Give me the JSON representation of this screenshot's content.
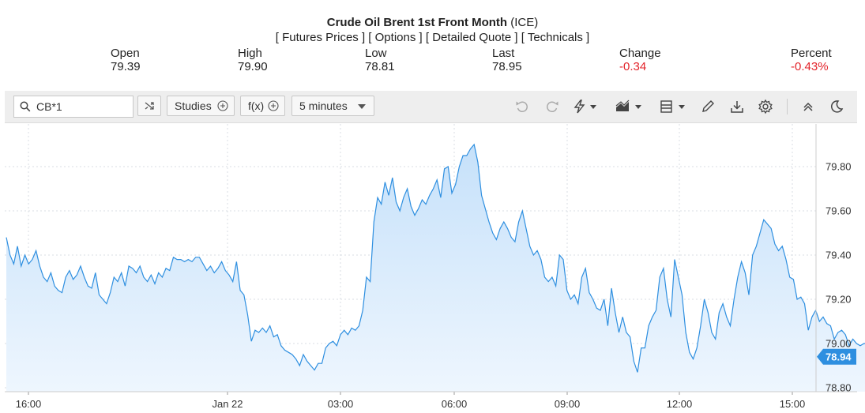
{
  "header": {
    "title_bold": "Crude Oil Brent 1st Front Month",
    "title_suffix": " (ICE)",
    "links": [
      "Futures Prices",
      "Options",
      "Detailed Quote",
      "Technicals"
    ]
  },
  "stats": {
    "open_label": "Open",
    "open_value": "79.39",
    "high_label": "High",
    "high_value": "79.90",
    "low_label": "Low",
    "low_value": "78.81",
    "last_label": "Last",
    "last_value": "78.95",
    "change_label": "Change",
    "change_value": "-0.34",
    "percent_label": "Percent",
    "percent_value": "-0.43%"
  },
  "toolbar": {
    "symbol_value": "CB*1",
    "studies_label": "Studies",
    "fx_label": "f(x)",
    "interval_label": "5 minutes",
    "icons": [
      "undo-icon",
      "redo-icon",
      "lightning-icon",
      "chart-type-icon",
      "layout-icon",
      "pencil-icon",
      "download-icon",
      "gear-icon",
      "collapse-icon",
      "moon-icon"
    ]
  },
  "colors": {
    "line": "#2e8fe0",
    "fill_top": "#c6e1fa",
    "fill_bottom": "#eef6fe",
    "last_badge": "#2e8fe0",
    "negative": "#e3242b"
  },
  "chart_data": {
    "type": "area",
    "x_ticks": [
      "16:00",
      "Jan 22",
      "03:00",
      "06:00",
      "09:00",
      "12:00",
      "15:00"
    ],
    "y_ticks": [
      "78.80",
      "79.00",
      "79.20",
      "79.40",
      "79.60",
      "79.80"
    ],
    "ylim": [
      78.78,
      79.92
    ],
    "last_value_label": "78.94",
    "grid": true,
    "x_start": "15:05",
    "x_step_minutes": 5,
    "values": [
      79.48,
      79.4,
      79.36,
      79.44,
      79.35,
      79.4,
      79.36,
      79.38,
      79.42,
      79.35,
      79.3,
      79.28,
      79.32,
      79.26,
      79.24,
      79.23,
      79.3,
      79.33,
      79.29,
      79.31,
      79.35,
      79.3,
      79.26,
      79.25,
      79.32,
      79.22,
      79.2,
      79.18,
      79.23,
      79.3,
      79.28,
      79.32,
      79.26,
      79.35,
      79.34,
      79.32,
      79.35,
      79.3,
      79.28,
      79.31,
      79.27,
      79.32,
      79.3,
      79.34,
      79.33,
      79.39,
      79.38,
      79.38,
      79.37,
      79.38,
      79.37,
      79.39,
      79.39,
      79.36,
      79.33,
      79.35,
      79.32,
      79.34,
      79.37,
      79.33,
      79.31,
      79.28,
      79.37,
      79.24,
      79.22,
      79.13,
      79.01,
      79.06,
      79.05,
      79.07,
      79.05,
      79.08,
      79.03,
      79.04,
      78.99,
      78.97,
      78.96,
      78.95,
      78.93,
      78.9,
      78.95,
      78.92,
      78.9,
      78.88,
      78.91,
      78.91,
      78.98,
      79.0,
      79.01,
      78.99,
      79.04,
      79.06,
      79.04,
      79.07,
      79.06,
      79.08,
      79.15,
      79.3,
      79.28,
      79.55,
      79.66,
      79.63,
      79.73,
      79.67,
      79.75,
      79.64,
      79.6,
      79.66,
      79.7,
      79.62,
      79.58,
      79.61,
      79.65,
      79.63,
      79.67,
      79.7,
      79.74,
      79.66,
      79.79,
      79.8,
      79.68,
      79.72,
      79.8,
      79.85,
      79.85,
      79.88,
      79.9,
      79.82,
      79.67,
      79.61,
      79.55,
      79.5,
      79.47,
      79.52,
      79.55,
      79.52,
      79.48,
      79.46,
      79.55,
      79.6,
      79.52,
      79.44,
      79.4,
      79.42,
      79.38,
      79.3,
      79.28,
      79.3,
      79.26,
      79.4,
      79.38,
      79.24,
      79.2,
      79.22,
      79.18,
      79.3,
      79.34,
      79.23,
      79.2,
      79.16,
      79.15,
      79.2,
      79.08,
      79.25,
      79.14,
      79.05,
      79.12,
      79.05,
      79.03,
      78.92,
      78.87,
      78.98,
      78.98,
      79.08,
      79.12,
      79.15,
      79.3,
      79.34,
      79.2,
      79.12,
      79.38,
      79.3,
      79.22,
      79.05,
      78.96,
      78.93,
      78.98,
      79.08,
      79.2,
      79.14,
      79.05,
      79.02,
      79.14,
      79.18,
      79.12,
      79.08,
      79.2,
      79.3,
      79.37,
      79.32,
      79.22,
      79.4,
      79.44,
      79.5,
      79.56,
      79.54,
      79.52,
      79.45,
      79.42,
      79.44,
      79.38,
      79.3,
      79.29,
      79.2,
      79.21,
      79.18,
      79.06,
      79.12,
      79.15,
      79.1,
      79.12,
      79.09,
      79.08,
      79.02,
      79.05,
      79.06,
      79.04,
      78.99,
      79.02,
      79.0,
      78.99,
      79.0,
      79.0,
      78.98,
      78.99,
      79.01,
      79.0,
      78.99,
      78.99,
      79.0,
      78.97,
      78.98,
      78.96,
      78.94,
      78.95,
      78.97,
      78.95,
      78.94
    ]
  }
}
